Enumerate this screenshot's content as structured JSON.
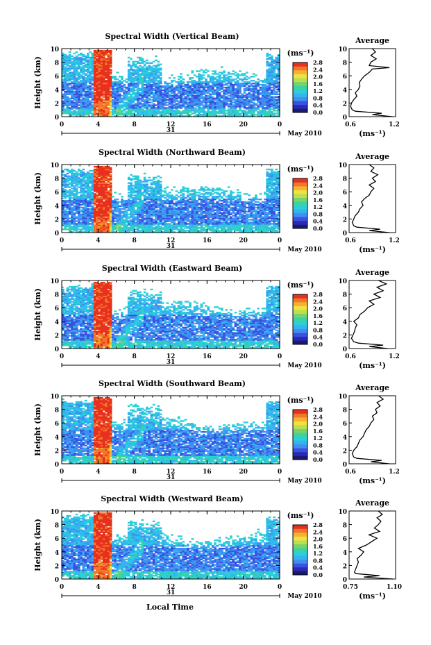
{
  "figure": {
    "xlabel": "Local Time",
    "date_label": "May 2010",
    "day_label": "31",
    "unit_label": "(ms⁻¹)",
    "avg_title": "Average",
    "avg_xlabel": "(ms⁻¹)"
  },
  "colormap": [
    "#1a1a6e",
    "#2a2ab8",
    "#3a52e0",
    "#3f8ef0",
    "#33b4f0",
    "#2ad0d8",
    "#3cd3a0",
    "#7ad26a",
    "#b8e050",
    "#f0e040",
    "#f8b030",
    "#f07828",
    "#e83020"
  ],
  "chart_data": [
    {
      "type": "heatmap",
      "title": "Spectral Width (Vertical Beam)",
      "ylabel": "Height (km)",
      "xlim": [
        0,
        24
      ],
      "ylim": [
        0,
        10
      ],
      "xticks": [
        "0",
        "4",
        "8",
        "12",
        "16",
        "20",
        "0"
      ],
      "yticks": [
        "0",
        "2",
        "4",
        "6",
        "8",
        "10"
      ],
      "colorbar": {
        "range": [
          0,
          2.8
        ],
        "ticks": [
          "0.0",
          "0.4",
          "0.8",
          "1.2",
          "1.6",
          "2.0",
          "2.4",
          "2.8"
        ]
      },
      "average": {
        "xlim": [
          0.6,
          1.2
        ],
        "xticks": [
          "0.6",
          "1.2"
        ],
        "profile": [
          [
            0,
            1.16
          ],
          [
            0.3,
            0.9
          ],
          [
            0.5,
            1.02
          ],
          [
            0.8,
            0.68
          ],
          [
            1,
            0.64
          ],
          [
            1.5,
            0.62
          ],
          [
            2,
            0.63
          ],
          [
            2.5,
            0.66
          ],
          [
            3,
            0.7
          ],
          [
            3.5,
            0.68
          ],
          [
            4,
            0.72
          ],
          [
            4.5,
            0.74
          ],
          [
            5,
            0.73
          ],
          [
            5.5,
            0.76
          ],
          [
            6,
            0.8
          ],
          [
            6.5,
            0.86
          ],
          [
            7,
            0.9
          ],
          [
            7.2,
            1.12
          ],
          [
            7.5,
            0.86
          ],
          [
            8,
            0.88
          ],
          [
            8.5,
            0.95
          ],
          [
            9,
            0.88
          ],
          [
            9.5,
            0.94
          ],
          [
            10,
            0.9
          ]
        ]
      }
    },
    {
      "type": "heatmap",
      "title": "Spectral Width (Northward Beam)",
      "ylabel": "Height (km)",
      "xlim": [
        0,
        24
      ],
      "ylim": [
        0,
        10
      ],
      "xticks": [
        "0",
        "4",
        "8",
        "12",
        "16",
        "20",
        "0"
      ],
      "yticks": [
        "0",
        "2",
        "4",
        "6",
        "8",
        "10"
      ],
      "colorbar": {
        "range": [
          0,
          2.8
        ],
        "ticks": [
          "0.0",
          "0.4",
          "0.8",
          "1.2",
          "1.6",
          "2.0",
          "2.4",
          "2.8"
        ]
      },
      "average": {
        "xlim": [
          0.6,
          1.2
        ],
        "xticks": [
          "0.6",
          "1.2"
        ],
        "profile": [
          [
            0,
            1.12
          ],
          [
            0.3,
            0.86
          ],
          [
            0.5,
            1.0
          ],
          [
            0.8,
            0.7
          ],
          [
            1,
            0.66
          ],
          [
            1.5,
            0.64
          ],
          [
            2,
            0.66
          ],
          [
            2.5,
            0.68
          ],
          [
            3,
            0.72
          ],
          [
            3.5,
            0.74
          ],
          [
            4,
            0.78
          ],
          [
            4.5,
            0.76
          ],
          [
            5,
            0.8
          ],
          [
            5.5,
            0.86
          ],
          [
            6,
            0.88
          ],
          [
            6.5,
            0.92
          ],
          [
            7,
            0.86
          ],
          [
            7.5,
            0.94
          ],
          [
            8,
            0.9
          ],
          [
            8.5,
            0.97
          ],
          [
            9,
            0.88
          ],
          [
            9.5,
            0.92
          ],
          [
            10,
            0.86
          ]
        ]
      }
    },
    {
      "type": "heatmap",
      "title": "Spectral Width (Eastward Beam)",
      "ylabel": "Height (km)",
      "xlim": [
        0,
        24
      ],
      "ylim": [
        0,
        10
      ],
      "xticks": [
        "0",
        "4",
        "8",
        "12",
        "16",
        "20",
        "0"
      ],
      "yticks": [
        "0",
        "2",
        "4",
        "6",
        "8",
        "10"
      ],
      "colorbar": {
        "range": [
          0,
          2.8
        ],
        "ticks": [
          "0.0",
          "0.4",
          "0.8",
          "1.2",
          "1.6",
          "2.0",
          "2.4",
          "2.8"
        ]
      },
      "average": {
        "xlim": [
          0.6,
          1.2
        ],
        "xticks": [
          "0.6",
          "1.2"
        ],
        "profile": [
          [
            0,
            1.1
          ],
          [
            0.3,
            0.86
          ],
          [
            0.5,
            1.04
          ],
          [
            0.8,
            0.72
          ],
          [
            1,
            0.66
          ],
          [
            1.5,
            0.63
          ],
          [
            2,
            0.65
          ],
          [
            2.5,
            0.67
          ],
          [
            3,
            0.68
          ],
          [
            3.5,
            0.7
          ],
          [
            4,
            0.66
          ],
          [
            4.5,
            0.72
          ],
          [
            5,
            0.74
          ],
          [
            5.5,
            0.8
          ],
          [
            6,
            0.84
          ],
          [
            6.5,
            0.92
          ],
          [
            7,
            0.86
          ],
          [
            7.5,
            1.0
          ],
          [
            8,
            0.92
          ],
          [
            8.5,
            1.04
          ],
          [
            9,
            0.96
          ],
          [
            9.5,
            1.08
          ],
          [
            10,
            0.98
          ]
        ]
      }
    },
    {
      "type": "heatmap",
      "title": "Spectral Width (Southward Beam)",
      "ylabel": "Height (km)",
      "xlim": [
        0,
        24
      ],
      "ylim": [
        0,
        10
      ],
      "xticks": [
        "0",
        "4",
        "8",
        "12",
        "16",
        "20",
        "0"
      ],
      "yticks": [
        "0",
        "2",
        "4",
        "6",
        "8",
        "10"
      ],
      "colorbar": {
        "range": [
          0,
          2.8
        ],
        "ticks": [
          "0.0",
          "0.4",
          "0.8",
          "1.2",
          "1.6",
          "2.0",
          "2.4",
          "2.8"
        ]
      },
      "average": {
        "xlim": [
          0.6,
          1.2
        ],
        "xticks": [
          "0.6",
          "1.2"
        ],
        "profile": [
          [
            0,
            1.12
          ],
          [
            0.3,
            0.88
          ],
          [
            0.5,
            1.02
          ],
          [
            0.8,
            0.7
          ],
          [
            1,
            0.66
          ],
          [
            1.5,
            0.64
          ],
          [
            2,
            0.66
          ],
          [
            2.5,
            0.7
          ],
          [
            3,
            0.72
          ],
          [
            3.5,
            0.74
          ],
          [
            4,
            0.78
          ],
          [
            4.5,
            0.8
          ],
          [
            5,
            0.82
          ],
          [
            5.5,
            0.86
          ],
          [
            6,
            0.88
          ],
          [
            6.5,
            0.92
          ],
          [
            7,
            0.9
          ],
          [
            7.5,
            0.96
          ],
          [
            8,
            0.94
          ],
          [
            8.5,
            1.0
          ],
          [
            9,
            0.96
          ],
          [
            9.5,
            1.04
          ],
          [
            10,
            0.98
          ]
        ]
      }
    },
    {
      "type": "heatmap",
      "title": "Spectral Width (Westward Beam)",
      "ylabel": "Height (km)",
      "xlim": [
        0,
        24
      ],
      "ylim": [
        0,
        10
      ],
      "xticks": [
        "0",
        "4",
        "8",
        "12",
        "16",
        "20",
        "0"
      ],
      "yticks": [
        "0",
        "2",
        "4",
        "6",
        "8",
        "10"
      ],
      "colorbar": {
        "range": [
          0,
          2.8
        ],
        "ticks": [
          "0.0",
          "0.4",
          "0.8",
          "1.2",
          "1.6",
          "2.0",
          "2.4",
          "2.8"
        ]
      },
      "average": {
        "xlim": [
          0.75,
          1.1
        ],
        "xticks": [
          "0.75",
          "1.10"
        ],
        "profile": [
          [
            0,
            1.08
          ],
          [
            0.3,
            0.86
          ],
          [
            0.5,
            0.98
          ],
          [
            0.8,
            0.8
          ],
          [
            1,
            0.79
          ],
          [
            1.5,
            0.8
          ],
          [
            2,
            0.81
          ],
          [
            2.5,
            0.82
          ],
          [
            3,
            0.81
          ],
          [
            3.5,
            0.84
          ],
          [
            4,
            0.86
          ],
          [
            4.5,
            0.82
          ],
          [
            5,
            0.88
          ],
          [
            5.5,
            0.92
          ],
          [
            6,
            0.96
          ],
          [
            6.5,
            0.9
          ],
          [
            7,
            0.98
          ],
          [
            7.5,
            0.94
          ],
          [
            8,
            0.97
          ],
          [
            8.5,
            0.99
          ],
          [
            9,
            0.96
          ],
          [
            9.5,
            1.0
          ],
          [
            10,
            0.97
          ]
        ]
      }
    }
  ]
}
